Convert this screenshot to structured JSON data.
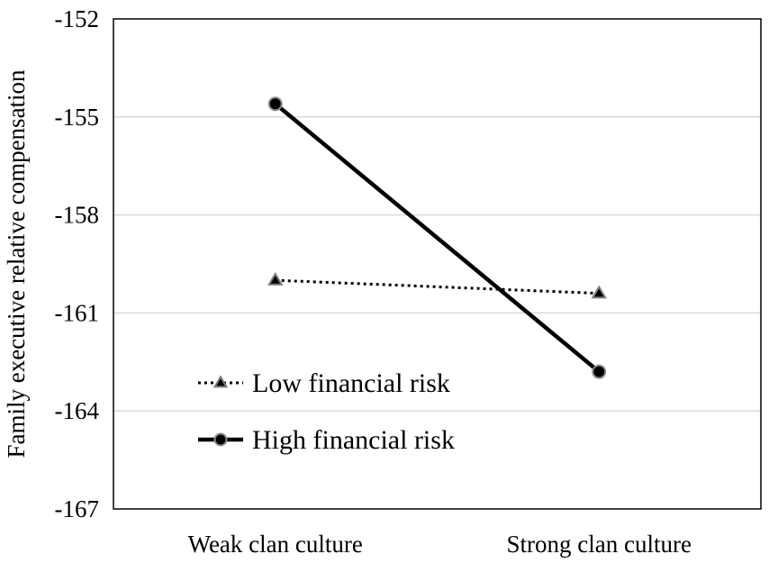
{
  "chart_data": {
    "type": "line",
    "title": "",
    "xlabel": "",
    "ylabel": "Family executive relative compensation",
    "categories": [
      "Weak clan culture",
      "Strong clan culture"
    ],
    "ylim": [
      -167,
      -152
    ],
    "yticks": [
      -152,
      -155,
      -158,
      -161,
      -164,
      -167
    ],
    "grid": true,
    "legend_position": "lower-left",
    "series": [
      {
        "name": "Low financial risk",
        "values": [
          -160.0,
          -160.4
        ],
        "line_style": "dotted",
        "marker": "triangle",
        "color": "#000000",
        "marker_fill": "#000000",
        "marker_stroke": "#7f7f7f"
      },
      {
        "name": "High financial risk",
        "values": [
          -154.6,
          -162.8
        ],
        "line_style": "solid",
        "marker": "circle",
        "color": "#000000",
        "marker_fill": "#000000",
        "marker_stroke": "#8c8c8c"
      }
    ]
  }
}
